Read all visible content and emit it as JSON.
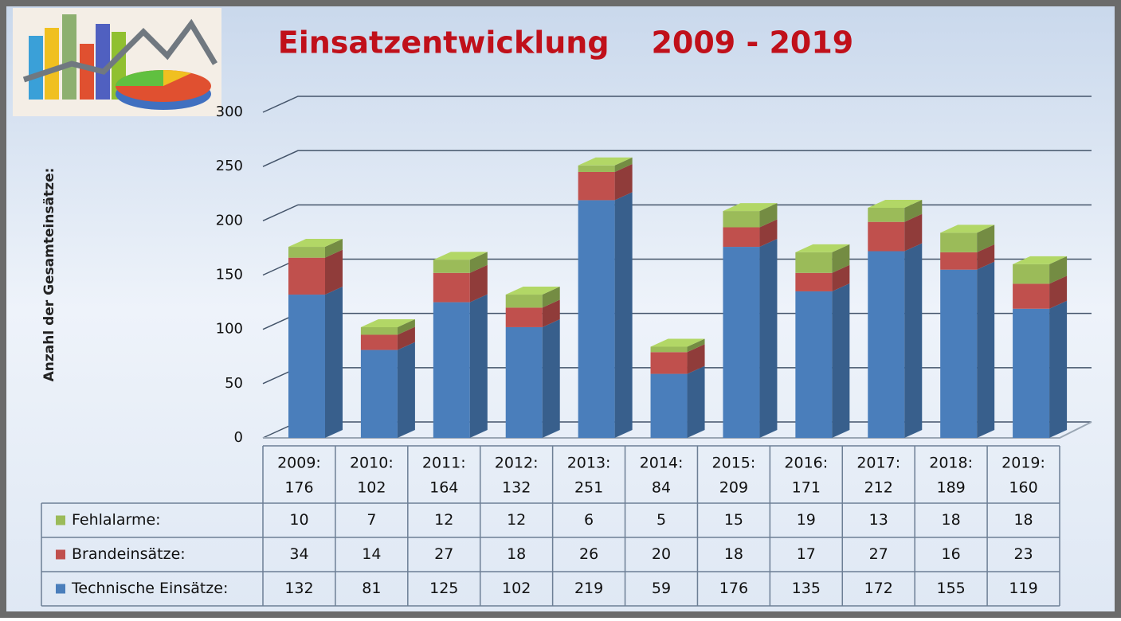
{
  "chart_data": {
    "type": "bar3d_stacked_table",
    "title": "Einsatzentwicklung    2009 - 2019",
    "y_label": "Anzahl der Gesamteinsätze:",
    "categories": [
      "2009:",
      "2010:",
      "2011:",
      "2012:",
      "2013:",
      "2014:",
      "2015:",
      "2016:",
      "2017:",
      "2018:",
      "2019:"
    ],
    "totals": [
      176,
      102,
      164,
      132,
      251,
      84,
      209,
      171,
      212,
      189,
      160
    ],
    "series": [
      {
        "name": "Technische Einsätze:",
        "color": "#4a7ebb",
        "values": [
          132,
          81,
          125,
          102,
          219,
          59,
          176,
          135,
          172,
          155,
          119
        ]
      },
      {
        "name": "Brandeinsätze:",
        "color": "#c0504d",
        "values": [
          34,
          14,
          27,
          18,
          26,
          20,
          18,
          17,
          27,
          16,
          23
        ]
      },
      {
        "name": "Fehlalarme:",
        "color": "#9bbb59",
        "values": [
          10,
          7,
          12,
          12,
          6,
          5,
          15,
          19,
          13,
          18,
          18
        ]
      }
    ],
    "ylim": [
      0,
      300
    ],
    "yticks": [
      0,
      50,
      100,
      150,
      200,
      250,
      300
    ],
    "grid": true
  }
}
